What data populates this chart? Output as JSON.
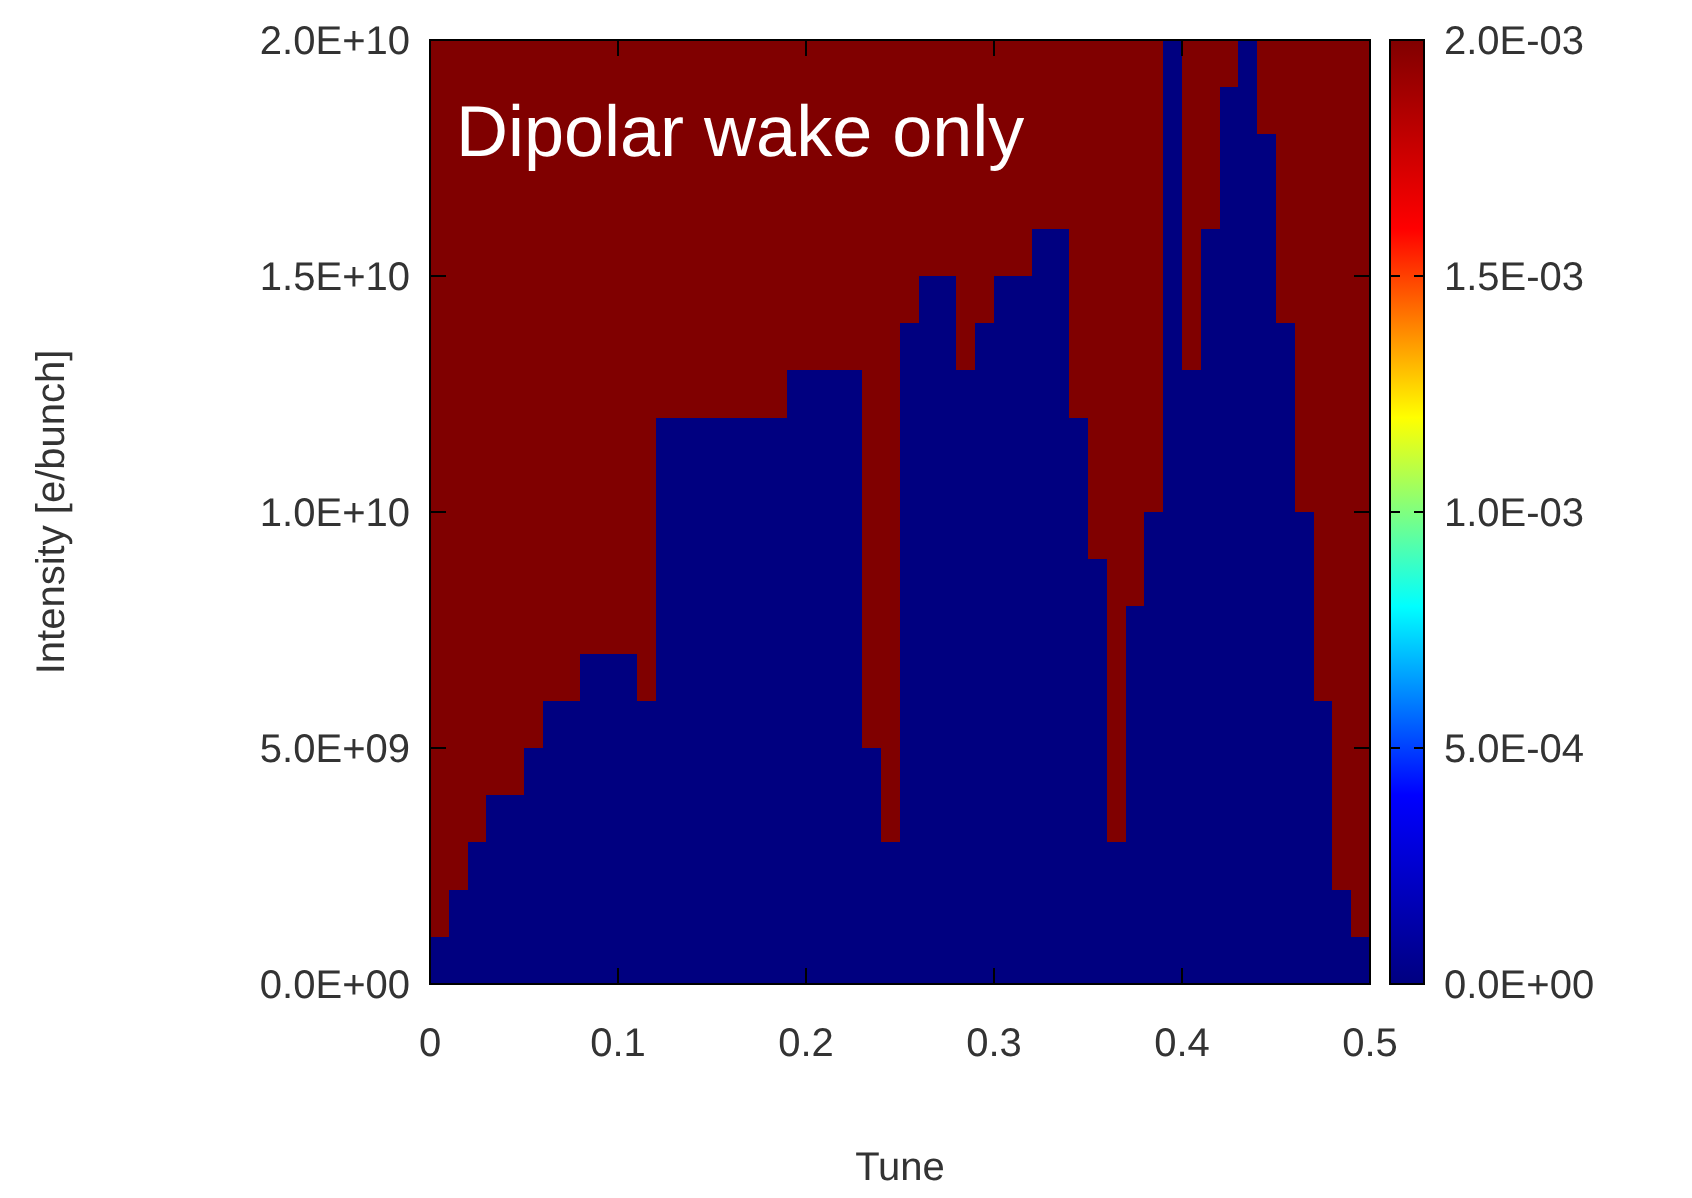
{
  "chart_data": {
    "type": "heatmap",
    "title": "Dipolar wake only",
    "xlabel": "Tune",
    "ylabel": "Intensity [e/bunch]",
    "xlim": [
      0,
      0.5
    ],
    "xticks": [
      0,
      0.1,
      0.2,
      0.3,
      0.4,
      0.5
    ],
    "ylim": [
      0,
      20000000000
    ],
    "yticks": [
      {
        "value": 0,
        "label": "0.0E+00"
      },
      {
        "value": 5000000000,
        "label": "5.0E+09"
      },
      {
        "value": 10000000000,
        "label": "1.0E+10"
      },
      {
        "value": 15000000000,
        "label": "1.5E+10"
      },
      {
        "value": 20000000000,
        "label": "2.0E+10"
      }
    ],
    "clim": [
      0,
      0.002
    ],
    "cticks": [
      {
        "value": 0,
        "label": "0.0E+00"
      },
      {
        "value": 0.0005,
        "label": "5.0E-04"
      },
      {
        "value": 0.001,
        "label": "1.0E-03"
      },
      {
        "value": 0.0015,
        "label": "1.5E-03"
      },
      {
        "value": 0.002,
        "label": "2.0E-03"
      }
    ],
    "cells": [
      [
        0.002,
        0.002,
        0.002,
        0.002,
        0.002,
        0.002,
        0.002,
        0.002,
        0.002,
        0.002,
        0.002,
        0.002,
        0.002,
        0.002,
        0.002,
        0.002,
        0.002,
        0.002,
        0.002,
        0.002,
        0.002,
        0.002,
        0.002,
        0.002,
        0.002,
        0.002,
        0.002,
        0.002,
        0.002,
        0.002,
        0.002,
        0.002,
        0.002,
        0.002,
        0.002,
        0.002,
        0.002,
        0.002,
        0.002,
        0,
        0.002,
        0.002,
        0.002,
        0,
        0.002,
        0.002,
        0.002,
        0.002,
        0.002,
        0.002
      ],
      [
        0.002,
        0.002,
        0.002,
        0.002,
        0.002,
        0.002,
        0.002,
        0.002,
        0.002,
        0.002,
        0.002,
        0.002,
        0.002,
        0.002,
        0.002,
        0.002,
        0.002,
        0.002,
        0.002,
        0.002,
        0.002,
        0.002,
        0.002,
        0.002,
        0.002,
        0.002,
        0.002,
        0.002,
        0.002,
        0.002,
        0.002,
        0.002,
        0.002,
        0.002,
        0.002,
        0.002,
        0.002,
        0.002,
        0.002,
        0,
        0.002,
        0.002,
        0,
        0,
        0.002,
        0.002,
        0.002,
        0.002,
        0.002,
        0.002
      ],
      [
        0.002,
        0.002,
        0.002,
        0.002,
        0.002,
        0.002,
        0.002,
        0.002,
        0.002,
        0.002,
        0.002,
        0.002,
        0.002,
        0.002,
        0.002,
        0.002,
        0.002,
        0.002,
        0.002,
        0.002,
        0.002,
        0.002,
        0.002,
        0.002,
        0.002,
        0.002,
        0.002,
        0.002,
        0.002,
        0.002,
        0.002,
        0.002,
        0.002,
        0.002,
        0.002,
        0.002,
        0.002,
        0.002,
        0.002,
        0,
        0.002,
        0.002,
        0,
        0,
        0,
        0.002,
        0.002,
        0.002,
        0.002,
        0.002
      ],
      [
        0.002,
        0.002,
        0.002,
        0.002,
        0.002,
        0.002,
        0.002,
        0.002,
        0.002,
        0.002,
        0.002,
        0.002,
        0.002,
        0.002,
        0.002,
        0.002,
        0.002,
        0.002,
        0.002,
        0.002,
        0.002,
        0.002,
        0.002,
        0.002,
        0.002,
        0.002,
        0.002,
        0.002,
        0.002,
        0.002,
        0.002,
        0.002,
        0.002,
        0.002,
        0.002,
        0.002,
        0.002,
        0.002,
        0.002,
        0,
        0.002,
        0.002,
        0,
        0,
        0,
        0.002,
        0.002,
        0.002,
        0.002,
        0.002
      ],
      [
        0.002,
        0.002,
        0.002,
        0.002,
        0.002,
        0.002,
        0.002,
        0.002,
        0.002,
        0.002,
        0.002,
        0.002,
        0.002,
        0.002,
        0.002,
        0.002,
        0.002,
        0.002,
        0.002,
        0.002,
        0.002,
        0.002,
        0.002,
        0.002,
        0.002,
        0.002,
        0.002,
        0.002,
        0.002,
        0.002,
        0.002,
        0.002,
        0,
        0,
        0.002,
        0.002,
        0.002,
        0.002,
        0.002,
        0,
        0.002,
        0,
        0,
        0,
        0,
        0.002,
        0.002,
        0.002,
        0.002,
        0.002
      ],
      [
        0.002,
        0.002,
        0.002,
        0.002,
        0.002,
        0.002,
        0.002,
        0.002,
        0.002,
        0.002,
        0.002,
        0.002,
        0.002,
        0.002,
        0.002,
        0.002,
        0.002,
        0.002,
        0.002,
        0.002,
        0.002,
        0.002,
        0.002,
        0.002,
        0.002,
        0.002,
        0,
        0,
        0.002,
        0.002,
        0,
        0,
        0,
        0,
        0.002,
        0.002,
        0.002,
        0.002,
        0.002,
        0,
        0.002,
        0,
        0,
        0,
        0,
        0.002,
        0.002,
        0.002,
        0.002,
        0.002
      ],
      [
        0.002,
        0.002,
        0.002,
        0.002,
        0.002,
        0.002,
        0.002,
        0.002,
        0.002,
        0.002,
        0.002,
        0.002,
        0.002,
        0.002,
        0.002,
        0.002,
        0.002,
        0.002,
        0.002,
        0.002,
        0.002,
        0.002,
        0.002,
        0.002,
        0.002,
        0,
        0,
        0,
        0.002,
        0,
        0,
        0,
        0,
        0,
        0.002,
        0.002,
        0.002,
        0.002,
        0.002,
        0,
        0.002,
        0,
        0,
        0,
        0,
        0,
        0.002,
        0.002,
        0.002,
        0.002
      ],
      [
        0.002,
        0.002,
        0.002,
        0.002,
        0.002,
        0.002,
        0.002,
        0.002,
        0.002,
        0.002,
        0.002,
        0.002,
        0.002,
        0.002,
        0.002,
        0.002,
        0.002,
        0.002,
        0.002,
        0,
        0,
        0,
        0,
        0.002,
        0.002,
        0,
        0,
        0,
        0,
        0,
        0,
        0,
        0,
        0,
        0.002,
        0.002,
        0.002,
        0.002,
        0.002,
        0,
        0,
        0,
        0,
        0,
        0,
        0,
        0.002,
        0.002,
        0.002,
        0.002
      ],
      [
        0.002,
        0.002,
        0.002,
        0.002,
        0.002,
        0.002,
        0.002,
        0.002,
        0.002,
        0.002,
        0.002,
        0.002,
        0,
        0,
        0,
        0,
        0,
        0,
        0,
        0,
        0,
        0,
        0,
        0.002,
        0.002,
        0,
        0,
        0,
        0,
        0,
        0,
        0,
        0,
        0,
        0,
        0.002,
        0.002,
        0.002,
        0.002,
        0,
        0,
        0,
        0,
        0,
        0,
        0,
        0.002,
        0.002,
        0.002,
        0.002
      ],
      [
        0.002,
        0.002,
        0.002,
        0.002,
        0.002,
        0.002,
        0.002,
        0.002,
        0.002,
        0.002,
        0.002,
        0.002,
        0,
        0,
        0,
        0,
        0,
        0,
        0,
        0,
        0,
        0,
        0,
        0.002,
        0.002,
        0,
        0,
        0,
        0,
        0,
        0,
        0,
        0,
        0,
        0,
        0.002,
        0.002,
        0.002,
        0.002,
        0,
        0,
        0,
        0,
        0,
        0,
        0,
        0.002,
        0.002,
        0.002,
        0.002
      ],
      [
        0.002,
        0.002,
        0.002,
        0.002,
        0.002,
        0.002,
        0.002,
        0.002,
        0.002,
        0.002,
        0.002,
        0.002,
        0,
        0,
        0,
        0,
        0,
        0,
        0,
        0,
        0,
        0,
        0,
        0.002,
        0.002,
        0,
        0,
        0,
        0,
        0,
        0,
        0,
        0,
        0,
        0,
        0.002,
        0.002,
        0.002,
        0,
        0,
        0,
        0,
        0,
        0,
        0,
        0,
        0,
        0.002,
        0.002,
        0.002
      ],
      [
        0.002,
        0.002,
        0.002,
        0.002,
        0.002,
        0.002,
        0.002,
        0.002,
        0.002,
        0.002,
        0.002,
        0.002,
        0,
        0,
        0,
        0,
        0,
        0,
        0,
        0,
        0,
        0,
        0,
        0.002,
        0.002,
        0,
        0,
        0,
        0,
        0,
        0,
        0,
        0,
        0,
        0,
        0,
        0.002,
        0.002,
        0,
        0,
        0,
        0,
        0,
        0,
        0,
        0,
        0,
        0.002,
        0.002,
        0.002
      ],
      [
        0.002,
        0.002,
        0.002,
        0.002,
        0.002,
        0.002,
        0.002,
        0.002,
        0.002,
        0.002,
        0.002,
        0.002,
        0,
        0,
        0,
        0,
        0,
        0,
        0,
        0,
        0,
        0,
        0,
        0.002,
        0.002,
        0,
        0,
        0,
        0,
        0,
        0,
        0,
        0,
        0,
        0,
        0,
        0.002,
        0,
        0,
        0,
        0,
        0,
        0,
        0,
        0,
        0,
        0,
        0.002,
        0.002,
        0.002
      ],
      [
        0.002,
        0.002,
        0.002,
        0.002,
        0.002,
        0.002,
        0.002,
        0.002,
        0,
        0,
        0,
        0.002,
        0,
        0,
        0,
        0,
        0,
        0,
        0,
        0,
        0,
        0,
        0,
        0.002,
        0.002,
        0,
        0,
        0,
        0,
        0,
        0,
        0,
        0,
        0,
        0,
        0,
        0.002,
        0,
        0,
        0,
        0,
        0,
        0,
        0,
        0,
        0,
        0,
        0.002,
        0.002,
        0.002
      ],
      [
        0.002,
        0.002,
        0.002,
        0.002,
        0.002,
        0.002,
        0,
        0,
        0,
        0,
        0,
        0,
        0,
        0,
        0,
        0,
        0,
        0,
        0,
        0,
        0,
        0,
        0,
        0.002,
        0.002,
        0,
        0,
        0,
        0,
        0,
        0,
        0,
        0,
        0,
        0,
        0,
        0.002,
        0,
        0,
        0,
        0,
        0,
        0,
        0,
        0,
        0,
        0,
        0,
        0.002,
        0.002
      ],
      [
        0.002,
        0.002,
        0.002,
        0.002,
        0.002,
        0,
        0,
        0,
        0,
        0,
        0,
        0,
        0,
        0,
        0,
        0,
        0,
        0,
        0,
        0,
        0,
        0,
        0,
        0,
        0.002,
        0,
        0,
        0,
        0,
        0,
        0,
        0,
        0,
        0,
        0,
        0,
        0.002,
        0,
        0,
        0,
        0,
        0,
        0,
        0,
        0,
        0,
        0,
        0,
        0.002,
        0.002
      ],
      [
        0.002,
        0.002,
        0.002,
        0,
        0,
        0,
        0,
        0,
        0,
        0,
        0,
        0,
        0,
        0,
        0,
        0,
        0,
        0,
        0,
        0,
        0,
        0,
        0,
        0,
        0.002,
        0,
        0,
        0,
        0,
        0,
        0,
        0,
        0,
        0,
        0,
        0,
        0.002,
        0,
        0,
        0,
        0,
        0,
        0,
        0,
        0,
        0,
        0,
        0,
        0.002,
        0.002
      ],
      [
        0.002,
        0.002,
        0,
        0,
        0,
        0,
        0,
        0,
        0,
        0,
        0,
        0,
        0,
        0,
        0,
        0,
        0,
        0,
        0,
        0,
        0,
        0,
        0,
        0,
        0,
        0,
        0,
        0,
        0,
        0,
        0,
        0,
        0,
        0,
        0,
        0,
        0,
        0,
        0,
        0,
        0,
        0,
        0,
        0,
        0,
        0,
        0,
        0,
        0.002,
        0.002
      ],
      [
        0.002,
        0,
        0,
        0,
        0,
        0,
        0,
        0,
        0,
        0,
        0,
        0,
        0,
        0,
        0,
        0,
        0,
        0,
        0,
        0,
        0,
        0,
        0,
        0,
        0,
        0,
        0,
        0,
        0,
        0,
        0,
        0,
        0,
        0,
        0,
        0,
        0,
        0,
        0,
        0,
        0,
        0,
        0,
        0,
        0,
        0,
        0,
        0,
        0,
        0.002
      ],
      [
        0,
        0,
        0,
        0,
        0,
        0,
        0,
        0,
        0,
        0,
        0,
        0,
        0,
        0,
        0,
        0,
        0,
        0,
        0,
        0,
        0,
        0,
        0,
        0,
        0,
        0,
        0,
        0,
        0,
        0,
        0,
        0,
        0,
        0,
        0,
        0,
        0,
        0,
        0,
        0,
        0,
        0,
        0,
        0,
        0,
        0,
        0,
        0,
        0,
        0
      ]
    ]
  }
}
